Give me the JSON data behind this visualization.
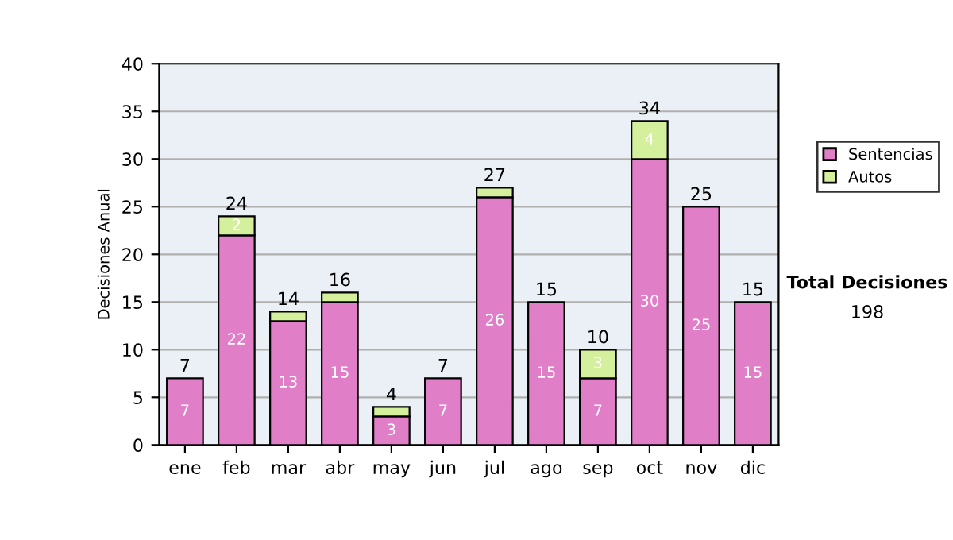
{
  "chart_data": {
    "type": "bar",
    "stacked": true,
    "ylabel": "Decisiones Anual",
    "categories": [
      "ene",
      "feb",
      "mar",
      "abr",
      "may",
      "jun",
      "jul",
      "ago",
      "sep",
      "oct",
      "nov",
      "dic"
    ],
    "series": [
      {
        "name": "Sentencias",
        "color": "#e07fc8",
        "values": [
          7,
          22,
          13,
          15,
          3,
          7,
          26,
          15,
          7,
          30,
          25,
          15
        ],
        "value_labels": [
          "7",
          "22",
          "13",
          "15",
          "3",
          "7",
          "26",
          "15",
          "7",
          "30",
          "25",
          "15"
        ]
      },
      {
        "name": "Autos",
        "color": "#d4f09c",
        "values": [
          null,
          2,
          1,
          1,
          1,
          null,
          1,
          null,
          3,
          4,
          null,
          null
        ],
        "value_labels": [
          null,
          "2",
          null,
          null,
          null,
          null,
          null,
          null,
          "3",
          "4",
          null,
          null
        ]
      }
    ],
    "totals": [
      "7",
      "24",
      "14",
      "16",
      "4",
      "7",
      "27",
      "15",
      "10",
      "34",
      "25",
      "15"
    ],
    "ylim": [
      0,
      40
    ],
    "yticks": [
      0,
      5,
      10,
      15,
      20,
      25,
      30,
      35,
      40
    ],
    "grid": "y",
    "legend": "right",
    "annotations": [
      "Total Decisiones",
      "198"
    ]
  }
}
